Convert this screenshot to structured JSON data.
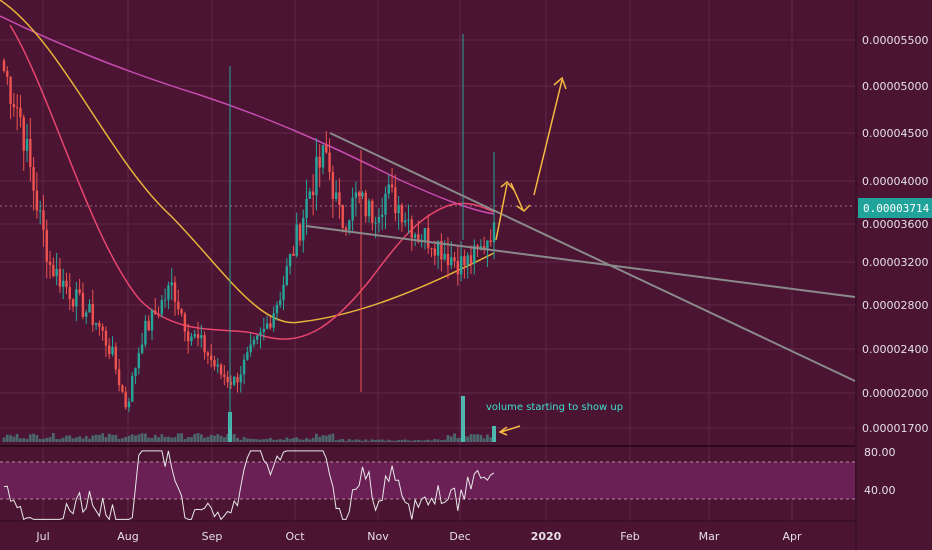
{
  "colors": {
    "background": "#4a1432",
    "grid": "#5e2846",
    "up": "#26a69a",
    "down": "#ef5350",
    "ma_fast": "#e8456f",
    "ma_slow": "#e7b43a",
    "ma_long": "#c84bb0",
    "trend": "#8a8a8a",
    "arrow": "#f5b942",
    "rsi_line": "#e8e8e8",
    "rsi_band": "#6a1f55",
    "price_tag": "#1fa39a",
    "annotation": "#40e0d0"
  },
  "price_axis": {
    "ticks": [
      "0.00005500",
      "0.00005000",
      "0.00004500",
      "0.00004000",
      "0.00003600",
      "0.00003200",
      "0.00002800",
      "0.00002400",
      "0.00002000",
      "0.00001700"
    ],
    "current_price": "0.00003714"
  },
  "rsi_axis": {
    "ticks": [
      "80.00",
      "40.00"
    ]
  },
  "time_axis": {
    "labels": [
      "Jul",
      "Aug",
      "Sep",
      "Oct",
      "Nov",
      "Dec",
      "2020",
      "Feb",
      "Mar",
      "Apr"
    ]
  },
  "annotation": {
    "text": "volume starting to show up"
  },
  "chart_data": {
    "type": "candlestick",
    "description_series": [
      {
        "name": "price",
        "kind": "candles"
      },
      {
        "name": "moving average (fast)",
        "kind": "line"
      },
      {
        "name": "moving average (slow)",
        "kind": "line"
      },
      {
        "name": "moving average (long)",
        "kind": "line"
      },
      {
        "name": "volume",
        "kind": "bars"
      },
      {
        "name": "RSI",
        "kind": "line"
      }
    ],
    "x_labels": [
      "Jul",
      "Aug",
      "Sep",
      "Oct",
      "Nov",
      "Dec",
      "2020",
      "Feb",
      "Mar",
      "Apr"
    ],
    "y_ticks": [
      5.5e-05,
      5e-05,
      4.5e-05,
      4e-05,
      3.6e-05,
      3.2e-05,
      2.8e-05,
      2.4e-05,
      2e-05,
      1.7e-05
    ],
    "current_price": 3.714e-05,
    "price_path": [
      5.2e-05,
      4.8e-05,
      4e-05,
      3.3e-05,
      3.1e-05,
      2.9e-05,
      2.75e-05,
      2.45e-05,
      1.9e-05,
      2.6e-05,
      2.85e-05,
      3.1e-05,
      2.65e-05,
      2.5e-05,
      2.25e-05,
      2.15e-05,
      2.4e-05,
      2.65e-05,
      3e-05,
      3.5e-05,
      4.05e-05,
      4.4e-05,
      3.7e-05,
      3.95e-05,
      3.8e-05,
      4e-05,
      3.85e-05,
      3.6e-05,
      3.55e-05,
      3.4e-05,
      3.3e-05,
      3.4e-05,
      3.71e-05
    ],
    "rsi_levels": [
      80,
      40
    ],
    "annotation": "volume starting to show up"
  }
}
